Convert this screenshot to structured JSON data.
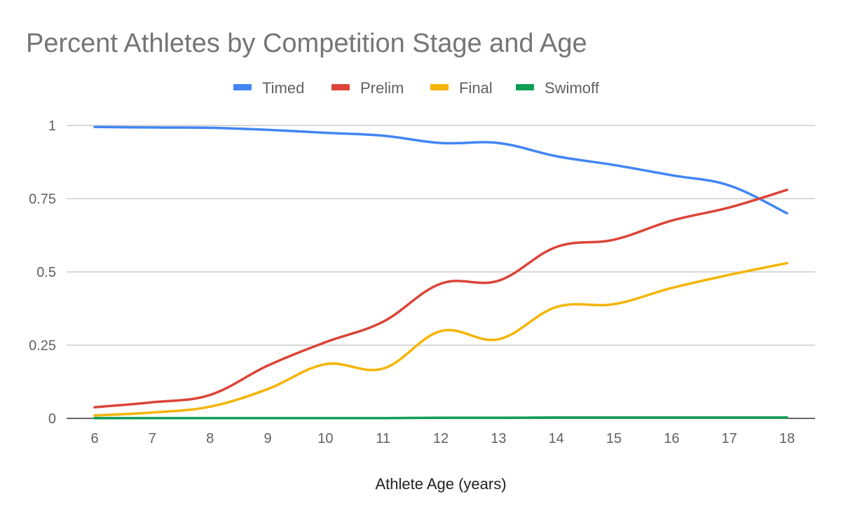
{
  "chart_data": {
    "type": "line",
    "title": "Percent Athletes by Competition Stage and Age",
    "xlabel": "Athlete Age (years)",
    "ylabel": "",
    "x": [
      6,
      7,
      8,
      9,
      10,
      11,
      12,
      13,
      14,
      15,
      16,
      17,
      18
    ],
    "ylim": [
      0,
      1
    ],
    "yticks": [
      "0",
      "0.25",
      "0.5",
      "0.75",
      "1"
    ],
    "ytick_values": [
      0,
      0.25,
      0.5,
      0.75,
      1
    ],
    "legend_position": "top",
    "grid": true,
    "series": [
      {
        "name": "Timed",
        "color": "#4285F4",
        "values": [
          0.995,
          0.993,
          0.992,
          0.985,
          0.975,
          0.965,
          0.94,
          0.94,
          0.895,
          0.865,
          0.83,
          0.795,
          0.7
        ]
      },
      {
        "name": "Prelim",
        "color": "#DB4437",
        "values": [
          0.038,
          0.055,
          0.08,
          0.18,
          0.26,
          0.33,
          0.46,
          0.47,
          0.585,
          0.61,
          0.675,
          0.72,
          0.78
        ]
      },
      {
        "name": "Final",
        "color": "#F4B400",
        "values": [
          0.01,
          0.02,
          0.04,
          0.1,
          0.185,
          0.17,
          0.298,
          0.27,
          0.38,
          0.39,
          0.445,
          0.49,
          0.53
        ]
      },
      {
        "name": "Swimoff",
        "color": "#0F9D58",
        "values": [
          0.001,
          0.001,
          0.001,
          0.001,
          0.001,
          0.001,
          0.002,
          0.002,
          0.003,
          0.003,
          0.003,
          0.003,
          0.003
        ]
      }
    ]
  }
}
